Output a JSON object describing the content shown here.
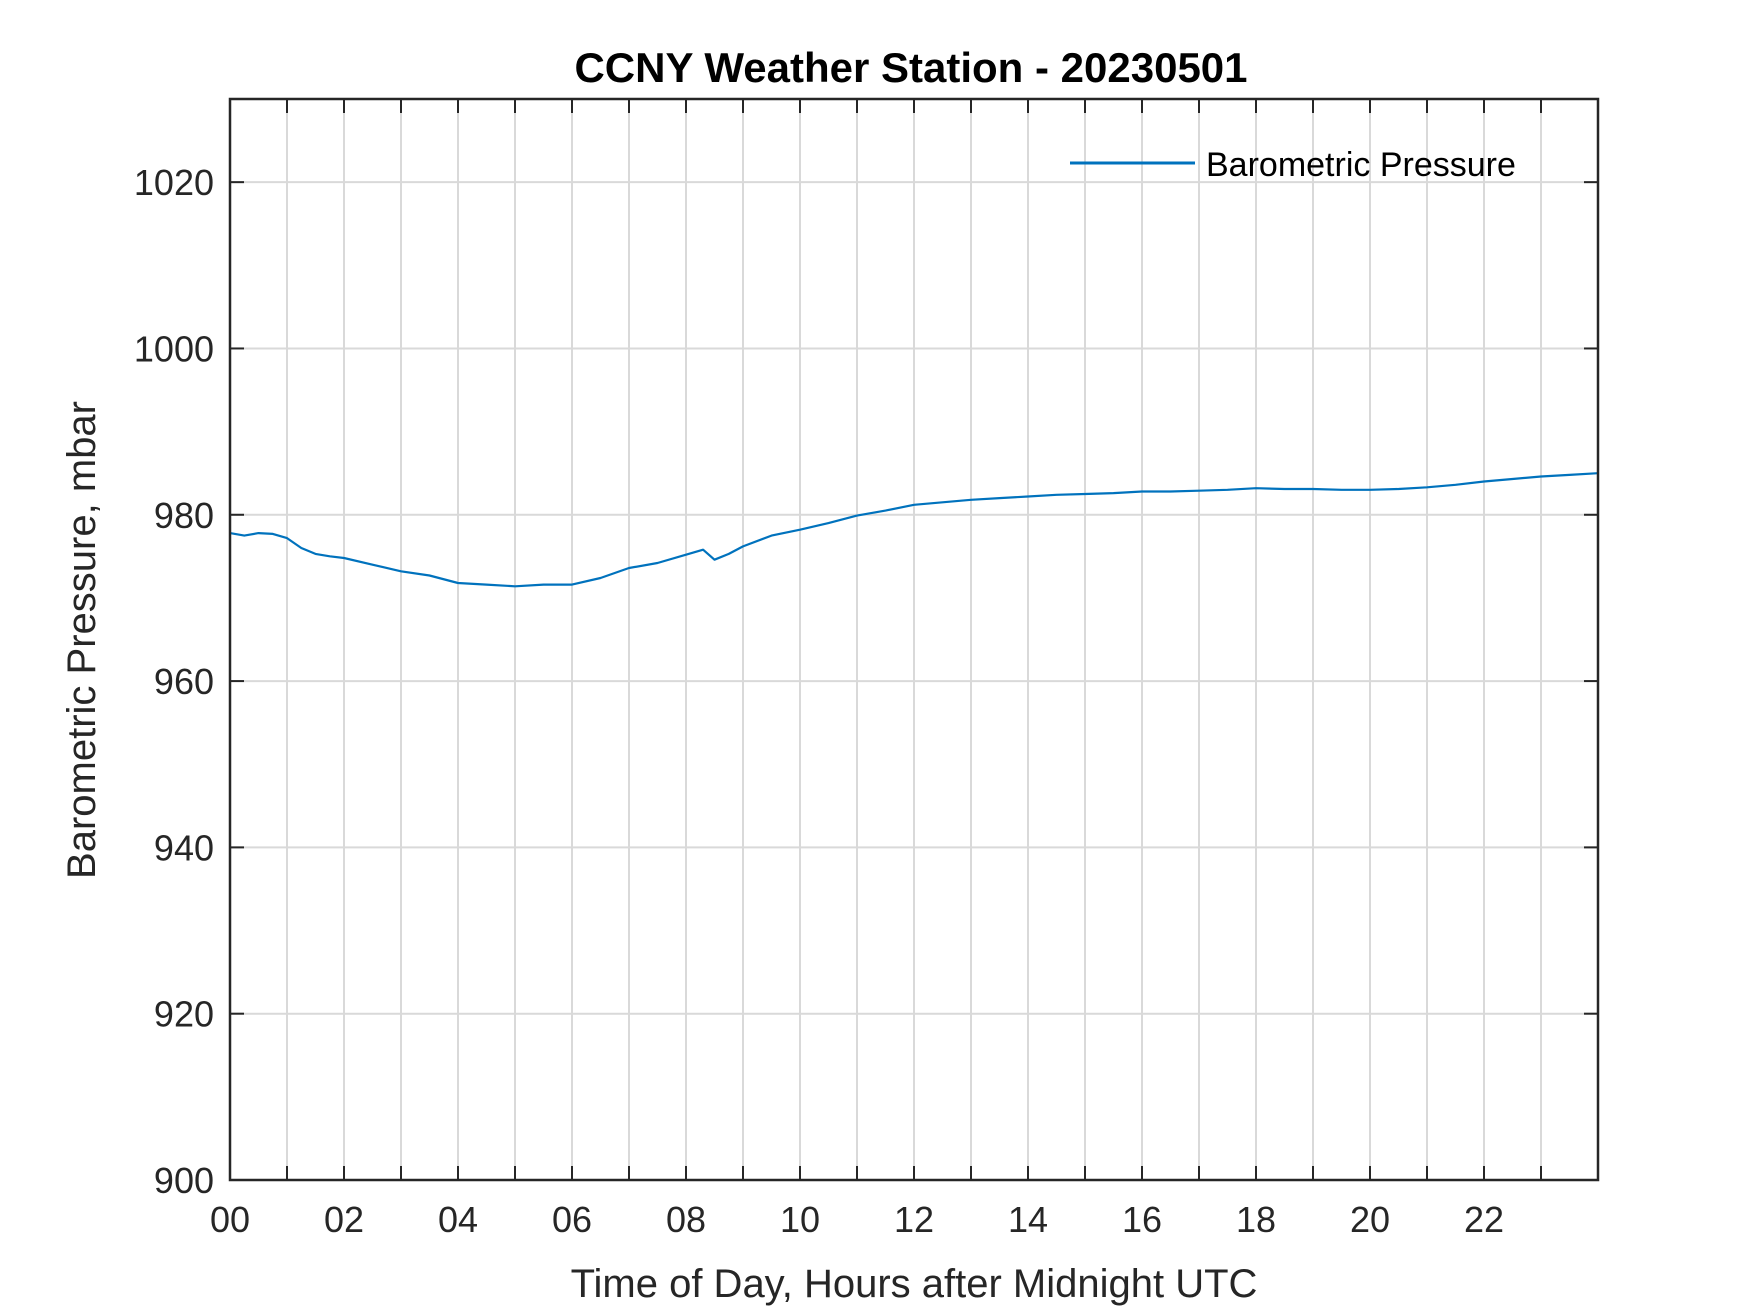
{
  "chart_data": {
    "type": "line",
    "title": "CCNY Weather Station - 20230501",
    "xlabel": "Time of Day, Hours after Midnight UTC",
    "ylabel": "Barometric Pressure, mbar",
    "xlim": [
      0,
      24
    ],
    "ylim": [
      900,
      1030
    ],
    "x_ticks": [
      0,
      2,
      4,
      6,
      8,
      10,
      12,
      14,
      16,
      18,
      20,
      22
    ],
    "x_tick_labels": [
      "00",
      "02",
      "04",
      "06",
      "08",
      "10",
      "12",
      "14",
      "16",
      "18",
      "20",
      "22"
    ],
    "y_ticks": [
      900,
      920,
      940,
      960,
      980,
      1000,
      1020
    ],
    "y_tick_labels": [
      "900",
      "920",
      "940",
      "960",
      "980",
      "1000",
      "1020"
    ],
    "grid": true,
    "legend_position": "top-right",
    "colors": {
      "series": "#0072BD",
      "grid": "#d9d9d9",
      "axes": "#262626"
    },
    "series": [
      {
        "name": "Barometric Pressure",
        "x": [
          0,
          0.25,
          0.5,
          0.75,
          1.0,
          1.25,
          1.5,
          1.75,
          2.0,
          2.5,
          3.0,
          3.5,
          4.0,
          4.5,
          5.0,
          5.5,
          6.0,
          6.5,
          7.0,
          7.5,
          8.0,
          8.3,
          8.5,
          8.75,
          9.0,
          9.5,
          10.0,
          10.5,
          11.0,
          11.5,
          12.0,
          12.5,
          13.0,
          13.5,
          14.0,
          14.5,
          15.0,
          15.5,
          16.0,
          16.5,
          17.0,
          17.5,
          18.0,
          18.5,
          19.0,
          19.5,
          20.0,
          20.5,
          21.0,
          21.5,
          22.0,
          22.5,
          23.0,
          23.5,
          24.0
        ],
        "y": [
          977.8,
          977.5,
          977.8,
          977.7,
          977.2,
          976.0,
          975.3,
          975.0,
          974.8,
          974.0,
          973.2,
          972.7,
          971.8,
          971.6,
          971.4,
          971.6,
          971.6,
          972.4,
          973.6,
          974.2,
          975.2,
          975.8,
          974.6,
          975.3,
          976.2,
          977.5,
          978.2,
          979.0,
          979.9,
          980.5,
          981.2,
          981.5,
          981.8,
          982.0,
          982.2,
          982.4,
          982.5,
          982.6,
          982.8,
          982.8,
          982.9,
          983.0,
          983.2,
          983.1,
          983.1,
          983.0,
          983.0,
          983.1,
          983.3,
          983.6,
          984.0,
          984.3,
          984.6,
          984.8,
          985.0
        ]
      }
    ]
  }
}
